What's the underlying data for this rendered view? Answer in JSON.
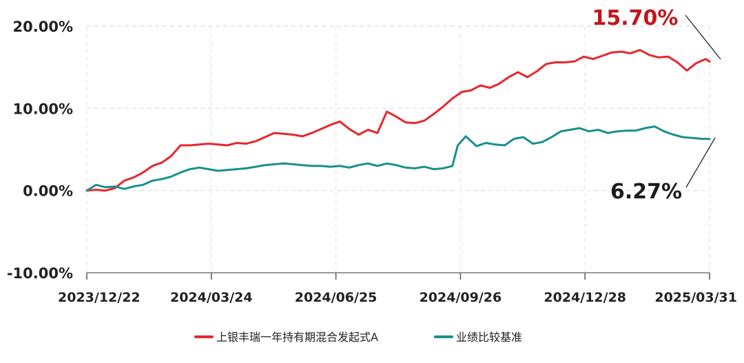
{
  "chart_data": {
    "type": "line",
    "title": "",
    "xlabel": "",
    "ylabel": "",
    "ylim": [
      -10,
      20
    ],
    "yticks": [
      "-10.00%",
      "0.00%",
      "10.00%",
      "20.00%"
    ],
    "ytick_values": [
      -10,
      0,
      10,
      20
    ],
    "xticks": [
      "2023/12/22",
      "2024/03/24",
      "2024/06/25",
      "2024/09/26",
      "2024/12/28",
      "2025/03/31"
    ],
    "grid": true,
    "legend_position": "bottom-center",
    "series": [
      {
        "name": "上银丰瑞一年持有期混合发起式A",
        "color": "#e8262b",
        "points": [
          [
            "2023-12-22",
            0.0
          ],
          [
            "2023-12-29",
            0.1
          ],
          [
            "2024-01-05",
            0.0
          ],
          [
            "2024-01-12",
            0.3
          ],
          [
            "2024-01-19",
            1.2
          ],
          [
            "2024-01-26",
            1.6
          ],
          [
            "2024-02-02",
            2.2
          ],
          [
            "2024-02-09",
            3.0
          ],
          [
            "2024-02-16",
            3.4
          ],
          [
            "2024-02-23",
            4.2
          ],
          [
            "2024-03-01",
            5.5
          ],
          [
            "2024-03-08",
            5.5
          ],
          [
            "2024-03-15",
            5.6
          ],
          [
            "2024-03-22",
            5.7
          ],
          [
            "2024-03-29",
            5.6
          ],
          [
            "2024-04-05",
            5.5
          ],
          [
            "2024-04-12",
            5.8
          ],
          [
            "2024-04-19",
            5.7
          ],
          [
            "2024-04-26",
            6.0
          ],
          [
            "2024-05-03",
            6.5
          ],
          [
            "2024-05-10",
            7.0
          ],
          [
            "2024-05-17",
            6.9
          ],
          [
            "2024-05-24",
            6.8
          ],
          [
            "2024-05-31",
            6.6
          ],
          [
            "2024-06-07",
            7.0
          ],
          [
            "2024-06-14",
            7.5
          ],
          [
            "2024-06-21",
            8.0
          ],
          [
            "2024-06-28",
            8.4
          ],
          [
            "2024-07-05",
            7.5
          ],
          [
            "2024-07-12",
            6.8
          ],
          [
            "2024-07-19",
            7.4
          ],
          [
            "2024-07-26",
            7.0
          ],
          [
            "2024-08-02",
            9.6
          ],
          [
            "2024-08-09",
            9.0
          ],
          [
            "2024-08-16",
            8.3
          ],
          [
            "2024-08-23",
            8.2
          ],
          [
            "2024-08-30",
            8.5
          ],
          [
            "2024-09-06",
            9.3
          ],
          [
            "2024-09-13",
            10.2
          ],
          [
            "2024-09-20",
            11.2
          ],
          [
            "2024-09-27",
            12.0
          ],
          [
            "2024-10-04",
            12.2
          ],
          [
            "2024-10-11",
            12.8
          ],
          [
            "2024-10-18",
            12.5
          ],
          [
            "2024-10-25",
            13.0
          ],
          [
            "2024-11-01",
            13.8
          ],
          [
            "2024-11-08",
            14.4
          ],
          [
            "2024-11-15",
            13.8
          ],
          [
            "2024-11-22",
            14.5
          ],
          [
            "2024-11-29",
            15.4
          ],
          [
            "2024-12-06",
            15.6
          ],
          [
            "2024-12-13",
            15.6
          ],
          [
            "2024-12-20",
            15.7
          ],
          [
            "2024-12-27",
            16.3
          ],
          [
            "2025-01-03",
            16.0
          ],
          [
            "2025-01-10",
            16.4
          ],
          [
            "2025-01-17",
            16.8
          ],
          [
            "2025-01-24",
            16.9
          ],
          [
            "2025-01-31",
            16.7
          ],
          [
            "2025-02-07",
            17.1
          ],
          [
            "2025-02-14",
            16.5
          ],
          [
            "2025-02-21",
            16.2
          ],
          [
            "2025-02-28",
            16.3
          ],
          [
            "2025-03-07",
            15.6
          ],
          [
            "2025-03-14",
            14.6
          ],
          [
            "2025-03-21",
            15.5
          ],
          [
            "2025-03-28",
            16.0
          ],
          [
            "2025-03-31",
            15.7
          ]
        ]
      },
      {
        "name": "业绩比较基准",
        "color": "#16908e",
        "points": [
          [
            "2023-12-22",
            0.0
          ],
          [
            "2023-12-29",
            0.7
          ],
          [
            "2024-01-05",
            0.4
          ],
          [
            "2024-01-12",
            0.5
          ],
          [
            "2024-01-19",
            0.2
          ],
          [
            "2024-01-26",
            0.5
          ],
          [
            "2024-02-02",
            0.7
          ],
          [
            "2024-02-09",
            1.2
          ],
          [
            "2024-02-16",
            1.4
          ],
          [
            "2024-02-23",
            1.7
          ],
          [
            "2024-03-01",
            2.2
          ],
          [
            "2024-03-08",
            2.6
          ],
          [
            "2024-03-15",
            2.8
          ],
          [
            "2024-03-22",
            2.6
          ],
          [
            "2024-03-29",
            2.4
          ],
          [
            "2024-04-05",
            2.5
          ],
          [
            "2024-04-12",
            2.6
          ],
          [
            "2024-04-19",
            2.7
          ],
          [
            "2024-04-26",
            2.9
          ],
          [
            "2024-05-03",
            3.1
          ],
          [
            "2024-05-10",
            3.2
          ],
          [
            "2024-05-17",
            3.3
          ],
          [
            "2024-05-24",
            3.2
          ],
          [
            "2024-05-31",
            3.1
          ],
          [
            "2024-06-07",
            3.0
          ],
          [
            "2024-06-14",
            3.0
          ],
          [
            "2024-06-21",
            2.9
          ],
          [
            "2024-06-28",
            3.0
          ],
          [
            "2024-07-05",
            2.8
          ],
          [
            "2024-07-12",
            3.1
          ],
          [
            "2024-07-19",
            3.3
          ],
          [
            "2024-07-26",
            3.0
          ],
          [
            "2024-08-02",
            3.3
          ],
          [
            "2024-08-09",
            3.1
          ],
          [
            "2024-08-16",
            2.8
          ],
          [
            "2024-08-23",
            2.7
          ],
          [
            "2024-08-30",
            2.9
          ],
          [
            "2024-09-06",
            2.6
          ],
          [
            "2024-09-13",
            2.7
          ],
          [
            "2024-09-20",
            3.0
          ],
          [
            "2024-09-24",
            5.5
          ],
          [
            "2024-09-30",
            6.6
          ],
          [
            "2024-10-08",
            5.4
          ],
          [
            "2024-10-15",
            5.8
          ],
          [
            "2024-10-22",
            5.6
          ],
          [
            "2024-10-29",
            5.5
          ],
          [
            "2024-11-05",
            6.3
          ],
          [
            "2024-11-12",
            6.5
          ],
          [
            "2024-11-19",
            5.7
          ],
          [
            "2024-11-26",
            5.9
          ],
          [
            "2024-12-03",
            6.5
          ],
          [
            "2024-12-10",
            7.2
          ],
          [
            "2024-12-17",
            7.4
          ],
          [
            "2024-12-24",
            7.6
          ],
          [
            "2024-12-31",
            7.2
          ],
          [
            "2025-01-07",
            7.4
          ],
          [
            "2025-01-14",
            7.0
          ],
          [
            "2025-01-21",
            7.2
          ],
          [
            "2025-01-28",
            7.3
          ],
          [
            "2025-02-04",
            7.3
          ],
          [
            "2025-02-11",
            7.6
          ],
          [
            "2025-02-18",
            7.8
          ],
          [
            "2025-02-25",
            7.2
          ],
          [
            "2025-03-04",
            6.8
          ],
          [
            "2025-03-11",
            6.5
          ],
          [
            "2025-03-18",
            6.4
          ],
          [
            "2025-03-25",
            6.3
          ],
          [
            "2025-03-31",
            6.27
          ]
        ]
      }
    ],
    "annotations": [
      {
        "text": "15.70%",
        "series": 0,
        "color": "#c0161c"
      },
      {
        "text": "6.27%",
        "series": 1,
        "color": "#1c1c1c"
      }
    ]
  }
}
